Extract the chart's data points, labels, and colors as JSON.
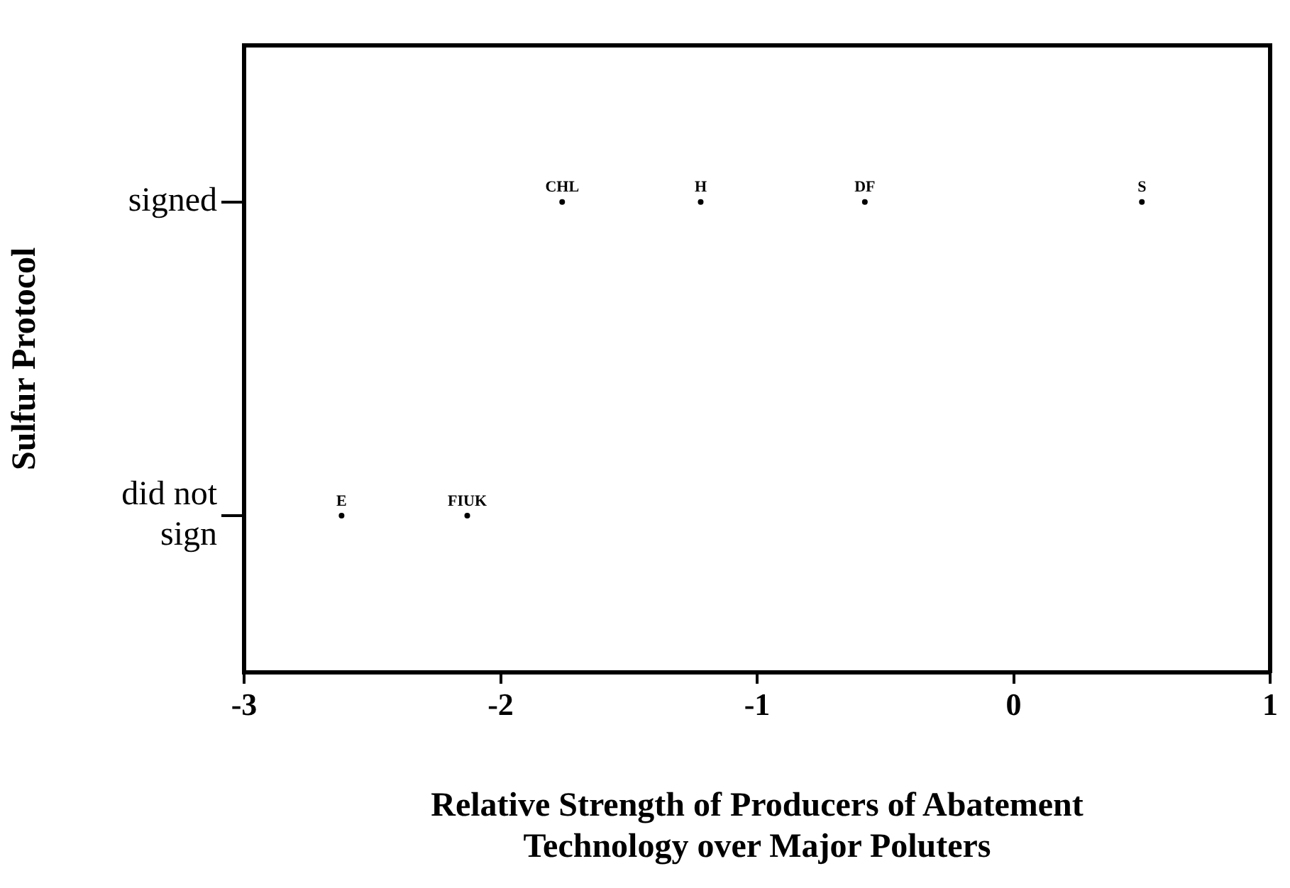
{
  "chart_data": {
    "type": "scatter",
    "orientation": "horizontal",
    "xlabel": "Relative Strength of Producers of Abatement Technology over Major Poluters",
    "ylabel": "Sulfur Protocol",
    "categories": [
      "signed",
      "did not sign"
    ],
    "series": [
      {
        "color": "#000000",
        "values": [
          -1.76,
          -2.62
        ],
        "value_labels": [
          "CHL",
          "E"
        ]
      },
      {
        "color": "#000000",
        "values": [
          -1.22,
          -2.13
        ],
        "value_labels": [
          "H",
          "FIUK"
        ]
      },
      {
        "color": "#000000",
        "values": [
          -0.58,
          null
        ],
        "value_labels": [
          "DF",
          null
        ]
      },
      {
        "color": "#000000",
        "values": [
          0.5,
          null
        ],
        "value_labels": [
          "S",
          null
        ]
      }
    ],
    "marker": "circle",
    "grid": false,
    "legend": false,
    "xlim": [
      -3,
      1
    ],
    "xticks": [
      -3,
      -2,
      -1,
      0,
      1
    ]
  }
}
